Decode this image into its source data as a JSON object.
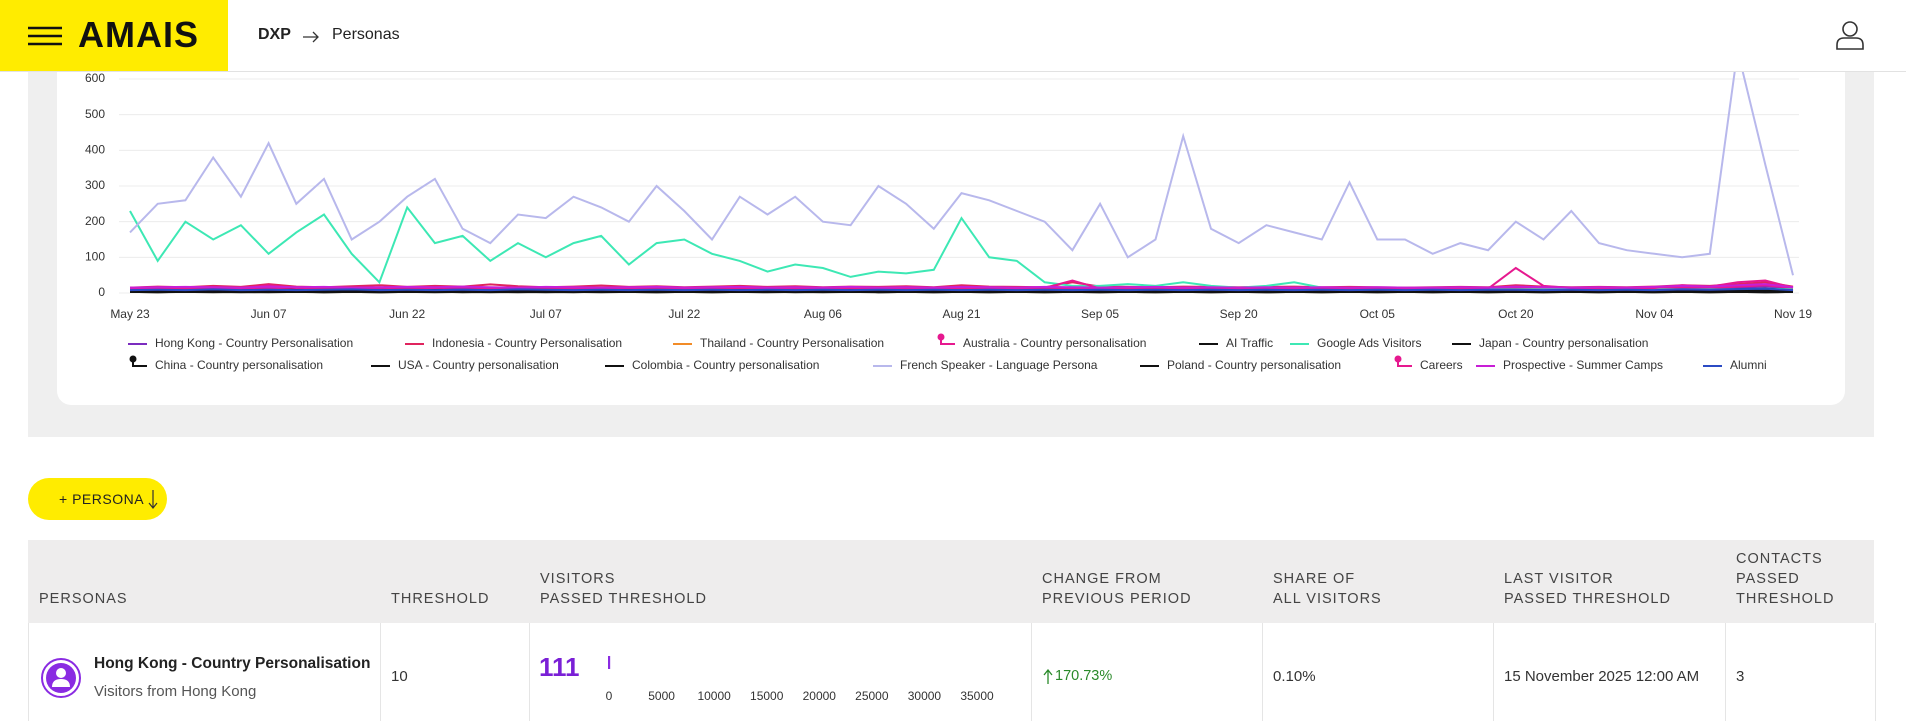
{
  "header": {
    "logo": "AMAIS",
    "breadcrumb": [
      "DXP",
      "Personas"
    ]
  },
  "chart_data": {
    "type": "line",
    "grid": true,
    "categories": [
      "May 23",
      null,
      null,
      null,
      null,
      "Jun 07",
      null,
      null,
      null,
      null,
      "Jun 22",
      null,
      null,
      null,
      null,
      "Jul 07",
      null,
      null,
      null,
      null,
      "Jul 22",
      null,
      null,
      null,
      null,
      "Aug 06",
      null,
      null,
      null,
      null,
      "Aug 21",
      null,
      null,
      null,
      null,
      "Sep 05",
      null,
      null,
      null,
      null,
      "Sep 20",
      null,
      null,
      null,
      null,
      "Oct 05",
      null,
      null,
      null,
      null,
      "Oct 20",
      null,
      null,
      null,
      null,
      "Nov 04",
      null,
      null,
      null,
      null,
      "Nov 19"
    ],
    "ylim": [
      0,
      600
    ],
    "yticks": [
      0,
      100,
      200,
      300,
      400,
      500,
      600
    ],
    "series": [
      {
        "name": "Hong Kong - Country Personalisation",
        "color": "#7b2cbf",
        "values": [
          8,
          10,
          9,
          12,
          10,
          14,
          9,
          11,
          10,
          12,
          9,
          10,
          13,
          11,
          10,
          9,
          12,
          10,
          11,
          9,
          10,
          12,
          9,
          10,
          11,
          8,
          10,
          9,
          12,
          10,
          11,
          9,
          10,
          8,
          9,
          10,
          12,
          9,
          10,
          11,
          9,
          10,
          8,
          9,
          11,
          10,
          9,
          8,
          10,
          9,
          12,
          10,
          11,
          9,
          10,
          12,
          14,
          11,
          15,
          18,
          12
        ]
      },
      {
        "name": "Indonesia - Country Personalisation",
        "color": "#e0245e",
        "values": [
          15,
          18,
          16,
          20,
          17,
          25,
          18,
          16,
          19,
          22,
          17,
          20,
          18,
          24,
          19,
          16,
          18,
          21,
          17,
          19,
          16,
          18,
          20,
          17,
          19,
          16,
          18,
          17,
          19,
          16,
          22,
          18,
          17,
          16,
          30,
          18,
          17,
          16,
          18,
          17,
          16,
          17,
          18,
          16,
          17,
          16,
          15,
          16,
          17,
          16,
          22,
          18,
          16,
          17,
          16,
          18,
          22,
          20,
          25,
          30,
          18
        ]
      },
      {
        "name": "Thailand - Country Personalisation",
        "color": "#f28c28",
        "values": [
          5,
          6,
          5,
          7,
          5,
          6,
          5,
          6,
          7,
          5,
          6,
          5,
          6,
          5,
          7,
          5,
          6,
          5,
          6,
          5,
          5,
          6,
          5,
          6,
          5,
          7,
          5,
          6,
          5,
          6,
          5,
          6,
          5,
          5,
          6,
          5,
          6,
          5,
          5,
          6,
          5,
          6,
          5,
          5,
          6,
          5,
          5,
          6,
          5,
          5,
          6,
          5,
          5,
          6,
          5,
          6,
          5,
          6,
          7,
          8,
          5
        ]
      },
      {
        "name": "Australia - Country personalisation",
        "color": "#e6198f",
        "marker": "circle",
        "values": [
          12,
          14,
          12,
          16,
          13,
          15,
          12,
          14,
          13,
          15,
          12,
          14,
          16,
          13,
          12,
          14,
          13,
          12,
          14,
          13,
          12,
          13,
          14,
          12,
          13,
          12,
          14,
          12,
          13,
          12,
          15,
          13,
          12,
          14,
          12,
          13,
          12,
          14,
          12,
          13,
          12,
          13,
          12,
          13,
          12,
          13,
          12,
          12,
          13,
          12,
          15,
          13,
          12,
          13,
          12,
          14,
          16,
          14,
          18,
          22,
          14
        ]
      },
      {
        "name": "AI Traffic",
        "color": "#111111",
        "values": [
          3,
          2,
          4,
          3,
          2,
          3,
          4,
          2,
          3,
          2,
          3,
          4,
          2,
          3,
          2,
          3,
          2,
          4,
          3,
          2,
          3,
          2,
          3,
          4,
          2,
          3,
          8,
          2,
          3,
          2,
          3,
          2,
          3,
          2,
          3,
          2,
          3,
          2,
          3,
          2,
          3,
          2,
          3,
          2,
          3,
          2,
          3,
          2,
          3,
          2,
          3,
          2,
          3,
          2,
          3,
          2,
          3,
          2,
          3,
          2,
          3
        ]
      },
      {
        "name": "Google Ads Visitors",
        "color": "#3de8b4",
        "values": [
          230,
          90,
          200,
          150,
          190,
          110,
          170,
          220,
          110,
          30,
          240,
          140,
          160,
          90,
          140,
          100,
          140,
          160,
          80,
          140,
          150,
          110,
          90,
          60,
          80,
          70,
          45,
          60,
          55,
          65,
          210,
          100,
          90,
          30,
          20,
          20,
          25,
          20,
          30,
          20,
          15,
          20,
          30,
          15,
          12,
          15,
          12,
          10,
          10,
          10,
          10,
          10,
          10,
          12,
          10,
          10,
          10,
          10,
          10,
          12,
          10
        ]
      },
      {
        "name": "Japan - Country personalisation",
        "color": "#111111",
        "values": [
          5,
          4,
          6,
          5,
          4,
          5,
          6,
          4,
          5,
          4,
          5,
          6,
          4,
          5,
          4,
          6,
          5,
          4,
          5,
          4,
          5,
          4,
          6,
          5,
          4,
          5,
          6,
          4,
          5,
          4,
          5,
          4,
          5,
          4,
          5,
          4,
          5,
          4,
          5,
          4,
          5,
          4,
          5,
          4,
          5,
          4,
          5,
          4,
          5,
          4,
          5,
          4,
          5,
          4,
          5,
          4,
          6,
          5,
          7,
          8,
          4
        ]
      },
      {
        "name": "China - Country personalisation",
        "color": "#111111",
        "marker": "circle",
        "values": [
          8,
          7,
          9,
          8,
          7,
          8,
          9,
          7,
          8,
          7,
          8,
          9,
          7,
          8,
          7,
          8,
          7,
          9,
          8,
          7,
          8,
          7,
          8,
          9,
          7,
          8,
          7,
          8,
          7,
          8,
          7,
          8,
          7,
          8,
          7,
          8,
          7,
          8,
          7,
          8,
          7,
          8,
          7,
          8,
          7,
          8,
          7,
          8,
          7,
          8,
          8,
          7,
          8,
          7,
          8,
          7,
          9,
          8,
          10,
          12,
          7
        ]
      },
      {
        "name": "USA - Country personalisation",
        "color": "#111111",
        "values": [
          6,
          5,
          7,
          6,
          5,
          6,
          7,
          5,
          6,
          5,
          6,
          7,
          5,
          6,
          5,
          6,
          5,
          7,
          6,
          5,
          6,
          5,
          6,
          7,
          5,
          6,
          5,
          6,
          5,
          6,
          5,
          6,
          5,
          6,
          5,
          6,
          5,
          6,
          5,
          6,
          5,
          6,
          5,
          6,
          5,
          6,
          5,
          6,
          5,
          6,
          6,
          5,
          6,
          5,
          6,
          5,
          7,
          6,
          8,
          9,
          5
        ]
      },
      {
        "name": "Colombia - Country personalisation",
        "color": "#111111",
        "values": [
          4,
          3,
          4,
          5,
          3,
          4,
          3,
          4,
          5,
          3,
          4,
          3,
          4,
          3,
          5,
          4,
          3,
          4,
          3,
          4,
          3,
          4,
          3,
          4,
          3,
          4,
          3,
          4,
          3,
          4,
          3,
          4,
          3,
          4,
          3,
          4,
          3,
          4,
          3,
          4,
          3,
          4,
          3,
          4,
          3,
          4,
          3,
          4,
          3,
          4,
          3,
          4,
          3,
          4,
          3,
          4,
          3,
          4,
          5,
          6,
          3
        ]
      },
      {
        "name": "French Speaker - Language Persona",
        "color": "#b8b8ec",
        "values": [
          170,
          250,
          260,
          380,
          270,
          420,
          250,
          320,
          150,
          200,
          270,
          320,
          180,
          140,
          220,
          210,
          270,
          240,
          200,
          300,
          230,
          150,
          270,
          220,
          270,
          200,
          190,
          300,
          250,
          180,
          280,
          260,
          230,
          200,
          120,
          250,
          100,
          150,
          440,
          180,
          140,
          190,
          170,
          150,
          310,
          150,
          150,
          110,
          140,
          120,
          200,
          150,
          230,
          140,
          120,
          110,
          100,
          110,
          680,
          360,
          50
        ]
      },
      {
        "name": "Poland - Country personalisation",
        "color": "#111111",
        "values": [
          3,
          2,
          3,
          2,
          3,
          2,
          3,
          2,
          3,
          2,
          3,
          2,
          3,
          2,
          3,
          2,
          3,
          2,
          3,
          2,
          3,
          2,
          3,
          2,
          3,
          2,
          3,
          2,
          3,
          2,
          3,
          2,
          3,
          2,
          3,
          2,
          3,
          2,
          3,
          2,
          3,
          2,
          3,
          2,
          3,
          2,
          3,
          2,
          3,
          2,
          3,
          2,
          3,
          2,
          3,
          2,
          3,
          2,
          3,
          2,
          3
        ]
      },
      {
        "name": "Careers",
        "color": "#e6198f",
        "marker": "circle",
        "values": [
          12,
          14,
          12,
          15,
          13,
          22,
          14,
          16,
          13,
          15,
          12,
          14,
          16,
          13,
          12,
          14,
          13,
          12,
          14,
          13,
          12,
          13,
          14,
          12,
          13,
          12,
          14,
          12,
          13,
          12,
          14,
          13,
          12,
          14,
          35,
          13,
          12,
          14,
          12,
          13,
          12,
          13,
          12,
          13,
          12,
          13,
          12,
          12,
          13,
          12,
          70,
          20,
          14,
          13,
          12,
          14,
          22,
          18,
          30,
          35,
          15
        ]
      },
      {
        "name": "Prospective - Summer Camps",
        "color": "#c81ed6",
        "values": [
          15,
          16,
          17,
          16,
          15,
          18,
          16,
          17,
          15,
          16,
          17,
          16,
          18,
          16,
          15,
          17,
          16,
          15,
          16,
          17,
          15,
          16,
          17,
          15,
          16,
          15,
          17,
          15,
          16,
          15,
          17,
          16,
          15,
          17,
          16,
          15,
          16,
          17,
          15,
          16,
          15,
          16,
          15,
          16,
          15,
          16,
          15,
          15,
          16,
          15,
          18,
          16,
          15,
          16,
          15,
          17,
          20,
          18,
          22,
          25,
          16
        ]
      },
      {
        "name": "Alumni",
        "color": "#2b4bc4",
        "values": [
          8,
          9,
          8,
          10,
          8,
          9,
          8,
          9,
          10,
          8,
          9,
          8,
          9,
          8,
          10,
          9,
          8,
          9,
          8,
          9,
          8,
          9,
          8,
          9,
          8,
          9,
          8,
          9,
          8,
          9,
          8,
          9,
          8,
          9,
          8,
          9,
          8,
          9,
          8,
          9,
          8,
          9,
          8,
          9,
          8,
          9,
          8,
          9,
          8,
          9,
          9,
          8,
          9,
          8,
          9,
          8,
          10,
          9,
          11,
          12,
          8
        ]
      }
    ]
  },
  "button": "+ PERSONA",
  "table": {
    "columns": [
      [
        "PERSONAS"
      ],
      [
        "THRESHOLD"
      ],
      [
        "VISITORS",
        "PASSED THRESHOLD"
      ],
      [
        "CHANGE FROM",
        "PREVIOUS PERIOD"
      ],
      [
        "SHARE OF",
        "ALL VISITORS"
      ],
      [
        "LAST VISITOR",
        "PASSED THRESHOLD"
      ],
      [
        "CONTACTS",
        "PASSED",
        "THRESHOLD"
      ]
    ],
    "rows": [
      {
        "name": "Hong Kong - Country Personalisation",
        "description": "Visitors from Hong Kong",
        "threshold": "10",
        "visitors": 111,
        "visitors_chart": {
          "xlim": [
            0,
            35000
          ],
          "xticks": [
            0,
            5000,
            10000,
            15000,
            20000,
            25000,
            30000,
            35000
          ],
          "color": "#8a2be2"
        },
        "change": "170.73%",
        "share": "0.10%",
        "last_visitor": "15 November 2025 12:00 AM",
        "contacts": "3"
      }
    ]
  }
}
